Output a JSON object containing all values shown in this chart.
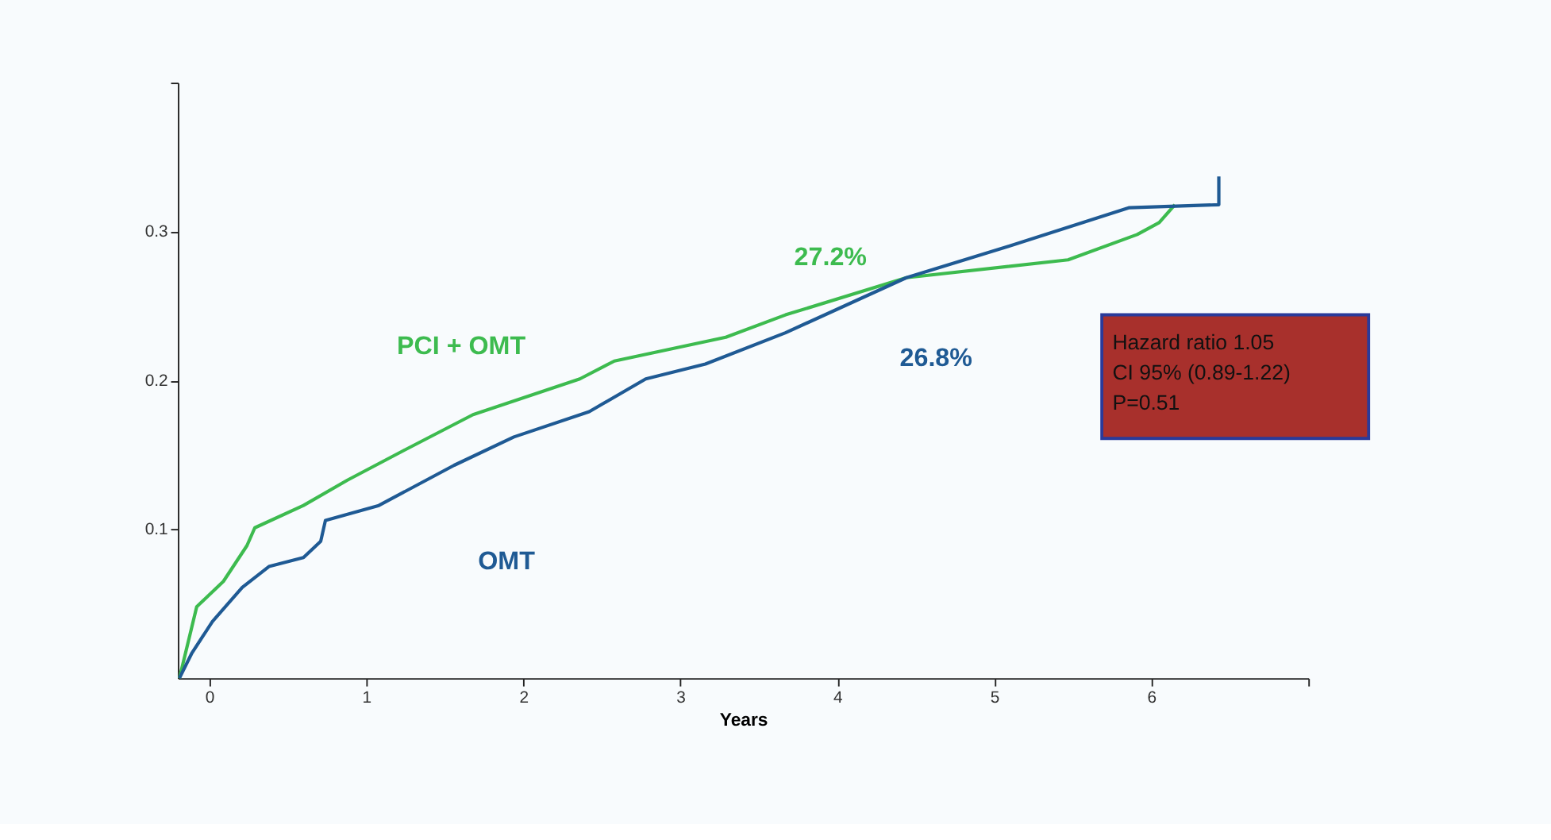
{
  "chart_data": {
    "type": "line",
    "xlabel": "Years",
    "xlim": [
      -0.2,
      7
    ],
    "xticks": [
      0,
      1,
      2,
      3,
      4,
      5,
      6,
      {
        "value": 7,
        "label": null
      }
    ],
    "ylim": [
      0,
      0.4
    ],
    "yticks": [
      0.1,
      0.2,
      0.3,
      {
        "value": 0.4,
        "label": null
      }
    ],
    "grid": false,
    "legend": false,
    "marker": "none",
    "line_style": "solid",
    "series": [
      {
        "name": "PCI + OMT",
        "color": "#3dbb4f",
        "x": [
          -0.19,
          -0.08,
          0.09,
          0.24,
          0.29,
          0.6,
          0.88,
          1.24,
          1.68,
          2.36,
          2.58,
          3.29,
          3.67,
          4.44,
          5.47,
          5.91,
          6.05,
          6.15
        ],
        "values": [
          0,
          0.048,
          0.065,
          0.089,
          0.101,
          0.116,
          0.133,
          0.153,
          0.177,
          0.201,
          0.213,
          0.229,
          0.244,
          0.269,
          0.281,
          0.298,
          0.306,
          0.318
        ]
      },
      {
        "name": "OMT",
        "color": "#1f5a94",
        "x": [
          -0.19,
          -0.11,
          0.02,
          0.21,
          0.38,
          0.6,
          0.71,
          0.74,
          1.08,
          1.56,
          1.94,
          2.42,
          2.78,
          3.16,
          3.67,
          4.44,
          5.09,
          5.86,
          6.43,
          6.43
        ],
        "values": [
          0,
          0.017,
          0.038,
          0.061,
          0.075,
          0.081,
          0.092,
          0.106,
          0.116,
          0.143,
          0.162,
          0.179,
          0.201,
          0.211,
          0.232,
          0.269,
          0.29,
          0.316,
          0.318,
          0.337
        ]
      }
    ],
    "annotations": [
      "27.2%",
      "26.8%",
      "Hazard ratio 1.05",
      "CI 95% (0.89-1.22)",
      "P=0.51"
    ]
  }
}
